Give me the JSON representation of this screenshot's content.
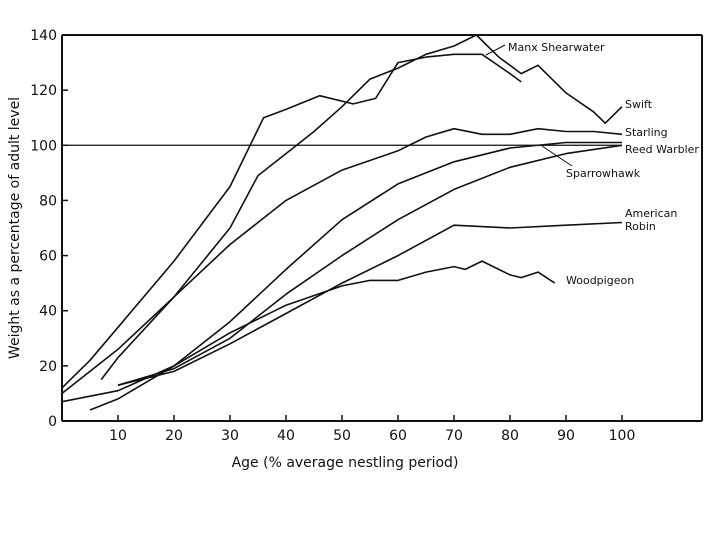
{
  "chart_data": {
    "type": "line",
    "title": "",
    "xlabel": "Age (% average nestling period)",
    "ylabel": "Weight as a percentage of adult level",
    "xlim": [
      0,
      110
    ],
    "ylim": [
      0,
      140
    ],
    "xticks": [
      10,
      20,
      30,
      40,
      50,
      60,
      70,
      80,
      90,
      100
    ],
    "yticks": [
      0,
      20,
      40,
      60,
      80,
      100,
      120,
      140
    ],
    "reference_line": {
      "y": 100
    },
    "grid": false,
    "legend": "inline labels at right",
    "series": [
      {
        "name": "Manx Shearwater",
        "label_lines": [
          "Manx Shearwater"
        ],
        "x": [
          0,
          5,
          10,
          20,
          30,
          36,
          40,
          46,
          52,
          56,
          60,
          65,
          70,
          75,
          80,
          82
        ],
        "y": [
          12,
          22,
          34,
          58,
          85,
          110,
          113,
          118,
          115,
          117,
          130,
          132,
          133,
          133,
          126,
          123
        ]
      },
      {
        "name": "Swift",
        "label_lines": [
          "Swift"
        ],
        "x": [
          7,
          10,
          20,
          30,
          35,
          40,
          45,
          50,
          55,
          60,
          65,
          70,
          74,
          78,
          82,
          85,
          90,
          95,
          97,
          100
        ],
        "y": [
          15,
          23,
          45,
          70,
          89,
          97,
          105,
          114,
          124,
          128,
          133,
          136,
          140,
          132,
          126,
          129,
          119,
          112,
          108,
          114
        ]
      },
      {
        "name": "Starling",
        "label_lines": [
          "Starling"
        ],
        "x": [
          0,
          10,
          20,
          30,
          40,
          50,
          60,
          65,
          70,
          75,
          80,
          85,
          90,
          95,
          100
        ],
        "y": [
          10,
          26,
          45,
          64,
          80,
          91,
          98,
          103,
          106,
          104,
          104,
          106,
          105,
          105,
          104
        ]
      },
      {
        "name": "Reed Warbler",
        "label_lines": [
          "Reed Warbler"
        ],
        "x": [
          5,
          10,
          20,
          30,
          40,
          50,
          60,
          70,
          80,
          90,
          100
        ],
        "y": [
          4,
          8,
          20,
          36,
          55,
          73,
          86,
          94,
          99,
          101,
          101
        ]
      },
      {
        "name": "Sparrowhawk",
        "label_lines": [
          "Sparrowhawk"
        ],
        "x": [
          10,
          20,
          30,
          40,
          50,
          60,
          70,
          80,
          90,
          100
        ],
        "y": [
          13,
          19,
          30,
          46,
          60,
          73,
          84,
          92,
          97,
          100
        ]
      },
      {
        "name": "American Robin",
        "label_lines": [
          "American",
          "Robin"
        ],
        "x": [
          10,
          20,
          30,
          40,
          50,
          60,
          70,
          80,
          90,
          100
        ],
        "y": [
          13,
          18,
          28,
          39,
          50,
          60,
          71,
          70,
          71,
          72
        ]
      },
      {
        "name": "Woodpigeon",
        "label_lines": [
          "Woodpigeon"
        ],
        "x": [
          0,
          10,
          20,
          30,
          40,
          50,
          55,
          60,
          65,
          70,
          72,
          75,
          80,
          82,
          85,
          88
        ],
        "y": [
          7,
          11,
          20,
          32,
          42,
          49,
          51,
          51,
          54,
          56,
          55,
          58,
          53,
          52,
          54,
          50
        ]
      }
    ]
  }
}
